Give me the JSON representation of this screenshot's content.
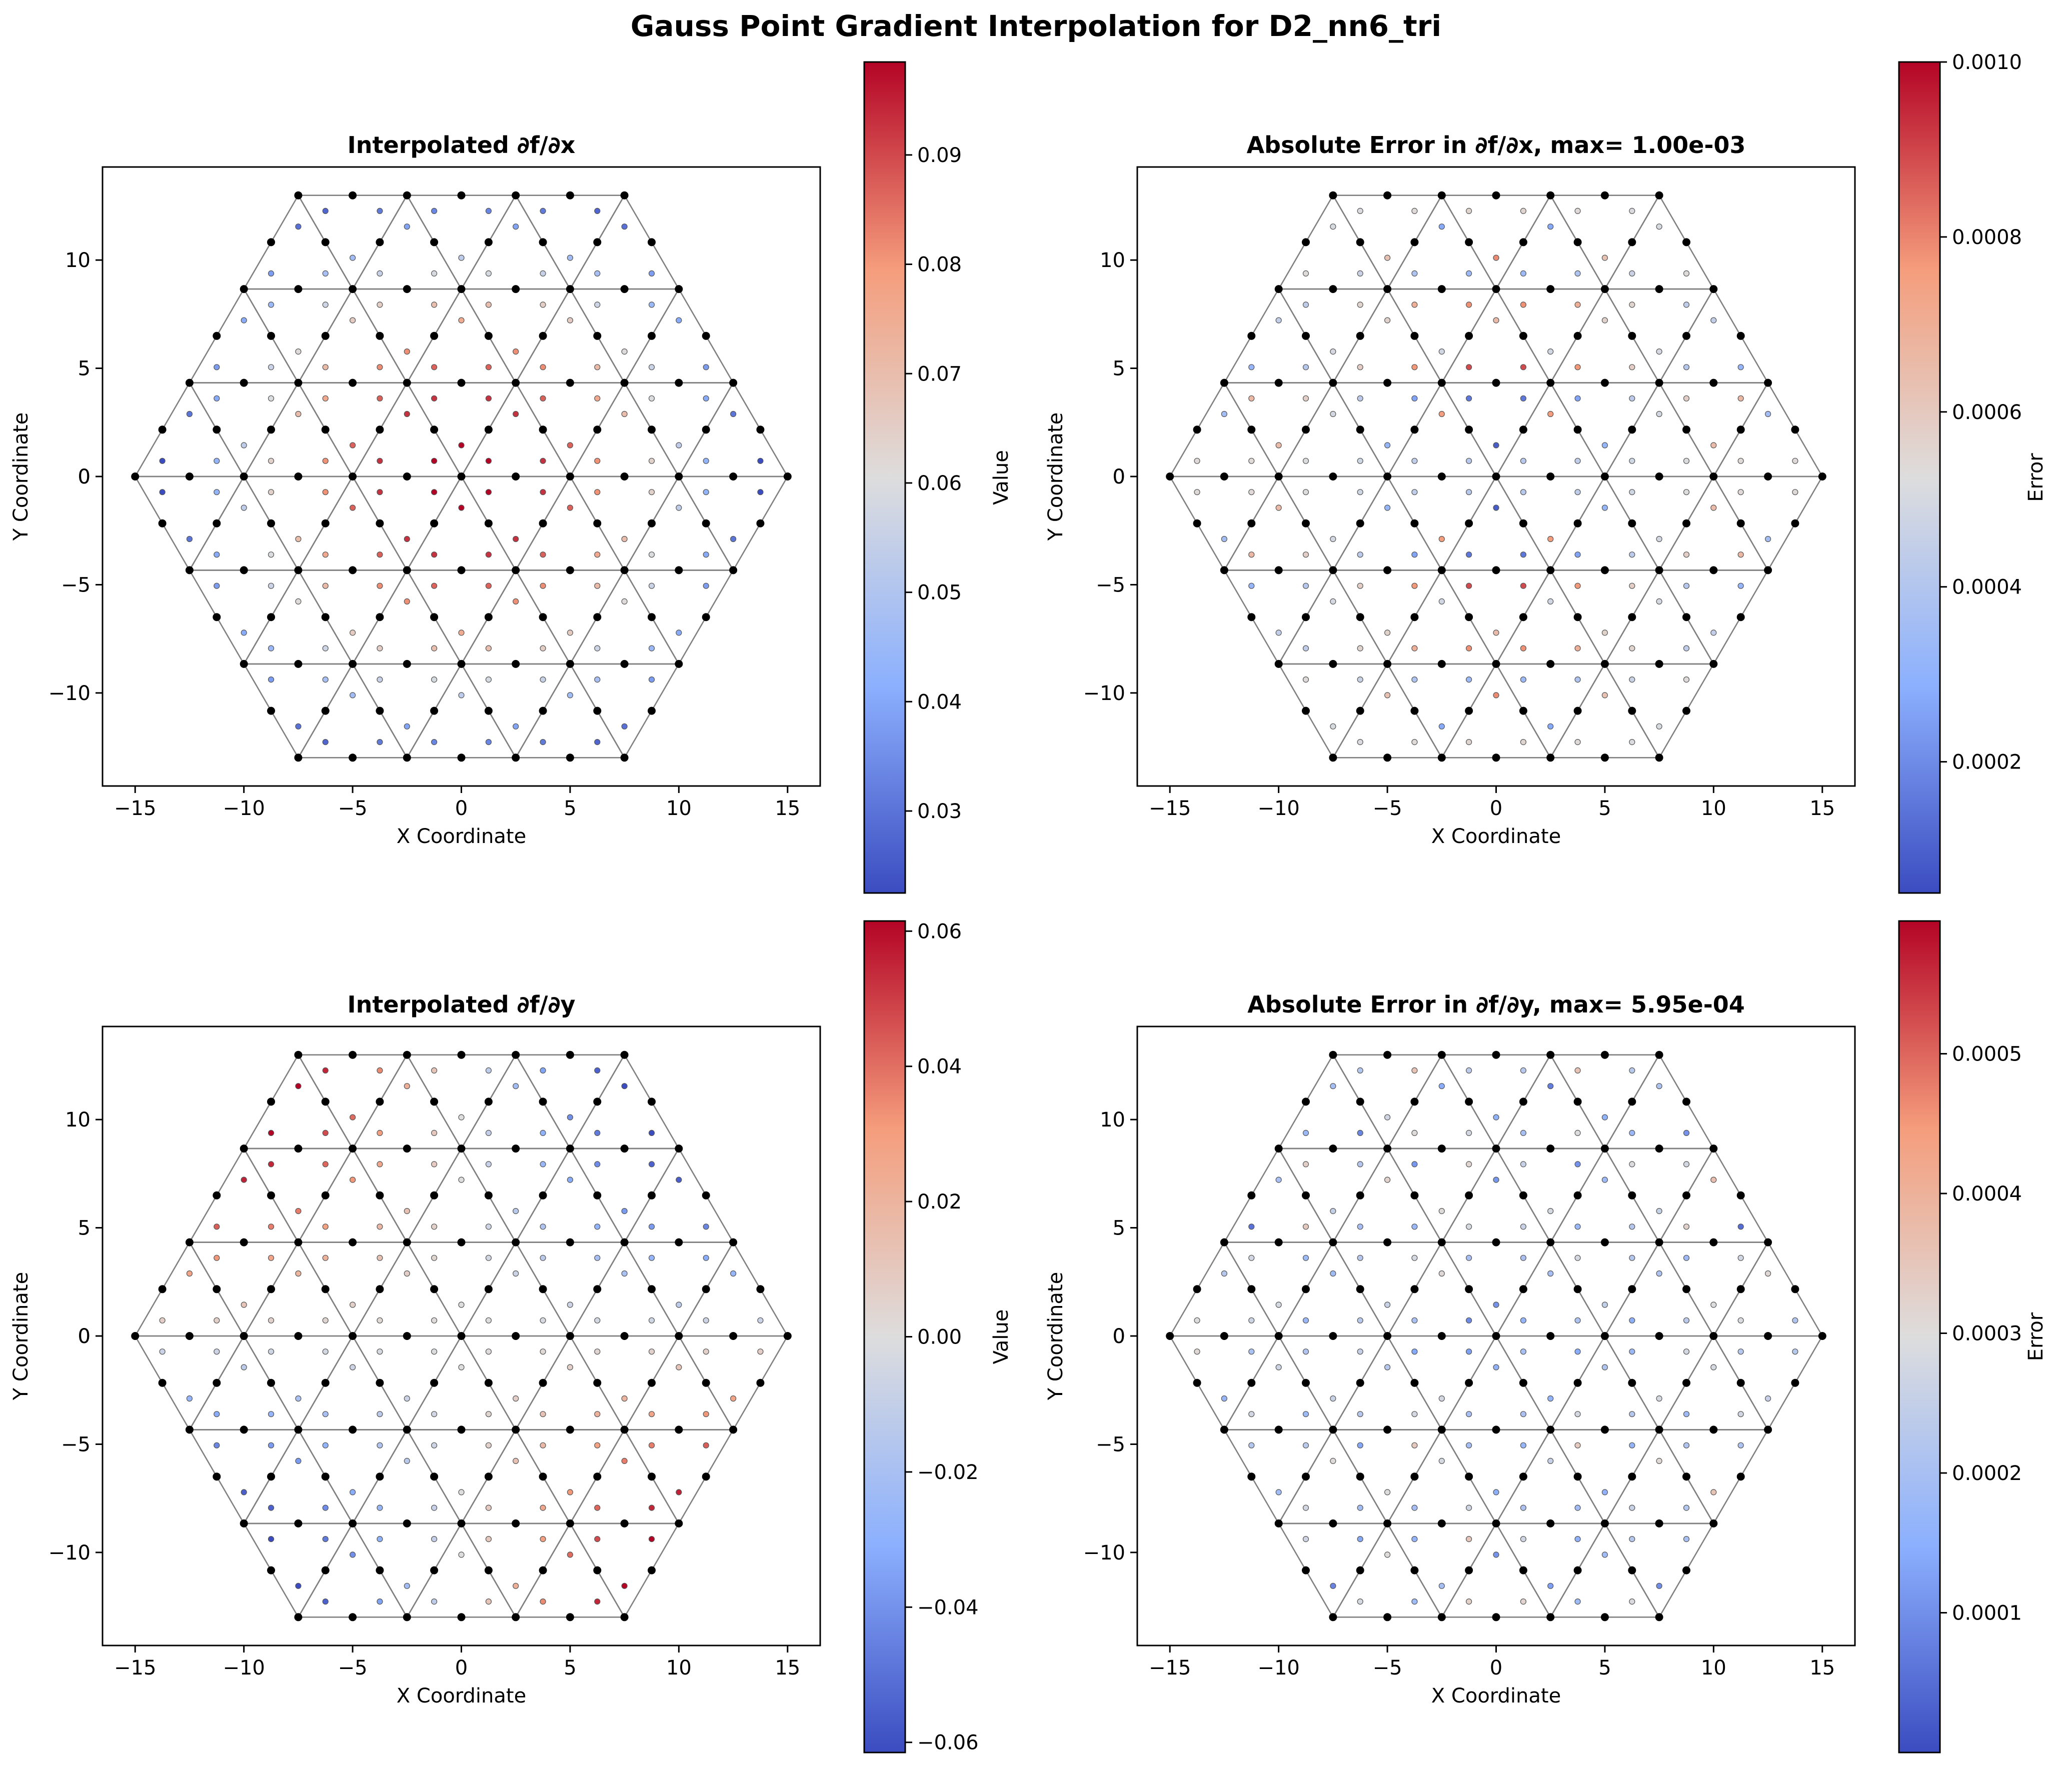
{
  "figure": {
    "suptitle": "Gauss Point Gradient Interpolation for D2_nn6_tri"
  },
  "colors": {
    "mesh_line": "#808080",
    "node": "#000000",
    "axes": "#000000",
    "cmap_low": "#3b4cc0",
    "cmap_mid": "#dddddd",
    "cmap_high": "#b40426",
    "cmap": "coolwarm"
  },
  "mesh": {
    "description": "hexagonal region tiled by equilateral triangles of side 5, 6-node triangles (corner + midside nodes), 3 Gauss points per element",
    "hex_radius": 15,
    "element_side": 5,
    "nodes_per_element": 6,
    "gauss_points_per_element": 3
  },
  "chart_data": [
    {
      "type": "scatter",
      "title": "Interpolated ∂f/∂x",
      "xlabel": "X Coordinate",
      "ylabel": "Y Coordinate",
      "xlim": [
        -16.5,
        16.5
      ],
      "ylim": [
        -14.3,
        14.3
      ],
      "xticks": [
        -15,
        -10,
        -5,
        0,
        5,
        10,
        15
      ],
      "yticks": [
        -10,
        -5,
        0,
        5,
        10
      ],
      "grid": false,
      "field": "dfdx",
      "colorbar": {
        "label": "Value",
        "min": 0.0225,
        "max": 0.0985,
        "ticks": [
          0.03,
          0.04,
          0.05,
          0.06,
          0.07,
          0.08,
          0.09
        ],
        "tick_labels": [
          "0.03",
          "0.04",
          "0.05",
          "0.06",
          "0.07",
          "0.08",
          "0.09"
        ]
      }
    },
    {
      "type": "scatter",
      "title": "Absolute Error in ∂f/∂x, max= 1.00e-03",
      "xlabel": "X Coordinate",
      "ylabel": "Y Coordinate",
      "xlim": [
        -16.5,
        16.5
      ],
      "ylim": [
        -14.3,
        14.3
      ],
      "xticks": [
        -15,
        -10,
        -5,
        0,
        5,
        10,
        15
      ],
      "yticks": [
        -10,
        -5,
        0,
        5,
        10
      ],
      "grid": false,
      "field": "err_x",
      "colorbar": {
        "label": "Error",
        "min": 5e-05,
        "max": 0.001,
        "ticks": [
          0.0002,
          0.0004,
          0.0006,
          0.0008,
          0.001
        ],
        "tick_labels": [
          "0.0002",
          "0.0004",
          "0.0006",
          "0.0008",
          "0.0010"
        ]
      }
    },
    {
      "type": "scatter",
      "title": "Interpolated ∂f/∂y",
      "xlabel": "X Coordinate",
      "ylabel": "Y Coordinate",
      "xlim": [
        -16.5,
        16.5
      ],
      "ylim": [
        -14.3,
        14.3
      ],
      "xticks": [
        -15,
        -10,
        -5,
        0,
        5,
        10,
        15
      ],
      "yticks": [
        -10,
        -5,
        0,
        5,
        10
      ],
      "grid": false,
      "field": "dfdy",
      "colorbar": {
        "label": "Value",
        "min": -0.0615,
        "max": 0.0615,
        "ticks": [
          -0.06,
          -0.04,
          -0.02,
          0.0,
          0.02,
          0.04,
          0.06
        ],
        "tick_labels": [
          "−0.06",
          "−0.04",
          "−0.02",
          "0.00",
          "0.02",
          "0.04",
          "0.06"
        ]
      }
    },
    {
      "type": "scatter",
      "title": "Absolute Error in ∂f/∂y, max= 5.95e-04",
      "xlabel": "X Coordinate",
      "ylabel": "Y Coordinate",
      "xlim": [
        -16.5,
        16.5
      ],
      "ylim": [
        -14.3,
        14.3
      ],
      "xticks": [
        -15,
        -10,
        -5,
        0,
        5,
        10,
        15
      ],
      "yticks": [
        -10,
        -5,
        0,
        5,
        10
      ],
      "grid": false,
      "field": "err_y",
      "colorbar": {
        "label": "Error",
        "min": 0.0,
        "max": 0.000595,
        "ticks": [
          0.0001,
          0.0002,
          0.0003,
          0.0004,
          0.0005
        ],
        "tick_labels": [
          "0.0001",
          "0.0002",
          "0.0003",
          "0.0004",
          "0.0005"
        ]
      }
    }
  ]
}
